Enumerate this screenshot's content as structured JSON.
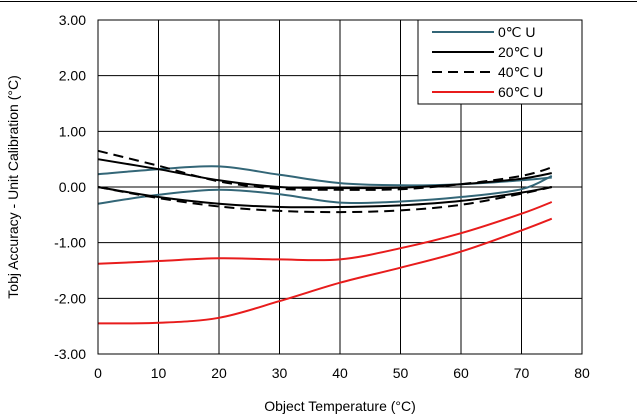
{
  "chart_data": {
    "type": "line",
    "title": "",
    "xlabel": "Object Temperature (°C)",
    "ylabel": "Tobj Accuracy - Unit Calibration (°C)",
    "xlim": [
      0,
      80
    ],
    "ylim": [
      -3.0,
      3.0
    ],
    "x_ticks": [
      "0",
      "10",
      "20",
      "30",
      "40",
      "50",
      "60",
      "70",
      "80"
    ],
    "y_ticks": [
      "3.00",
      "2.00",
      "1.00",
      "0.00",
      "-1.00",
      "-2.00",
      "-3.00"
    ],
    "grid": true,
    "legend_position": "top-right",
    "legend": [
      {
        "label": "0℃ U",
        "color": "#336677",
        "dash": "solid"
      },
      {
        "label": "20℃ U",
        "color": "#000000",
        "dash": "solid"
      },
      {
        "label": "40℃ U",
        "color": "#000000",
        "dash": "dashed"
      },
      {
        "label": "60℃ U",
        "color": "#e81c1c",
        "dash": "solid"
      }
    ],
    "series": [
      {
        "name": "0℃ U",
        "color": "#336677",
        "dash": "solid",
        "x": [
          0,
          10,
          20,
          30,
          40,
          50,
          60,
          70,
          75
        ],
        "y": [
          0.23,
          0.32,
          0.37,
          0.22,
          0.07,
          0.03,
          0.05,
          0.12,
          0.17
        ]
      },
      {
        "name": "0℃ U",
        "color": "#336677",
        "dash": "solid",
        "x": [
          0,
          10,
          20,
          30,
          40,
          50,
          60,
          70,
          75
        ],
        "y": [
          -0.3,
          -0.14,
          -0.05,
          -0.13,
          -0.28,
          -0.26,
          -0.18,
          -0.04,
          0.2
        ]
      },
      {
        "name": "20℃ U",
        "color": "#000000",
        "dash": "solid",
        "x": [
          0,
          10,
          20,
          30,
          40,
          50,
          60,
          70,
          75
        ],
        "y": [
          0.5,
          0.32,
          0.12,
          0.0,
          -0.02,
          -0.01,
          0.05,
          0.15,
          0.25
        ]
      },
      {
        "name": "20℃ U",
        "color": "#000000",
        "dash": "solid",
        "x": [
          0,
          10,
          20,
          30,
          40,
          50,
          60,
          70,
          75
        ],
        "y": [
          0.0,
          -0.18,
          -0.3,
          -0.36,
          -0.36,
          -0.33,
          -0.25,
          -0.1,
          0.0
        ]
      },
      {
        "name": "40℃ U",
        "color": "#000000",
        "dash": "dashed",
        "x": [
          0,
          10,
          20,
          30,
          40,
          50,
          60,
          70,
          75
        ],
        "y": [
          0.65,
          0.38,
          0.1,
          -0.03,
          -0.05,
          -0.04,
          0.05,
          0.2,
          0.35
        ]
      },
      {
        "name": "40℃ U",
        "color": "#000000",
        "dash": "dashed",
        "x": [
          0,
          10,
          20,
          30,
          40,
          50,
          60,
          70,
          75
        ],
        "y": [
          0.0,
          -0.2,
          -0.35,
          -0.43,
          -0.45,
          -0.42,
          -0.32,
          -0.12,
          0.0
        ]
      },
      {
        "name": "60℃ U",
        "color": "#e81c1c",
        "dash": "solid",
        "x": [
          0,
          10,
          20,
          30,
          40,
          50,
          60,
          70,
          75
        ],
        "y": [
          -1.38,
          -1.33,
          -1.28,
          -1.3,
          -1.3,
          -1.1,
          -0.83,
          -0.48,
          -0.27
        ]
      },
      {
        "name": "60℃ U",
        "color": "#e81c1c",
        "dash": "solid",
        "x": [
          0,
          10,
          20,
          30,
          40,
          50,
          60,
          70,
          75
        ],
        "y": [
          -2.45,
          -2.44,
          -2.35,
          -2.05,
          -1.72,
          -1.45,
          -1.16,
          -0.78,
          -0.57
        ]
      }
    ]
  }
}
